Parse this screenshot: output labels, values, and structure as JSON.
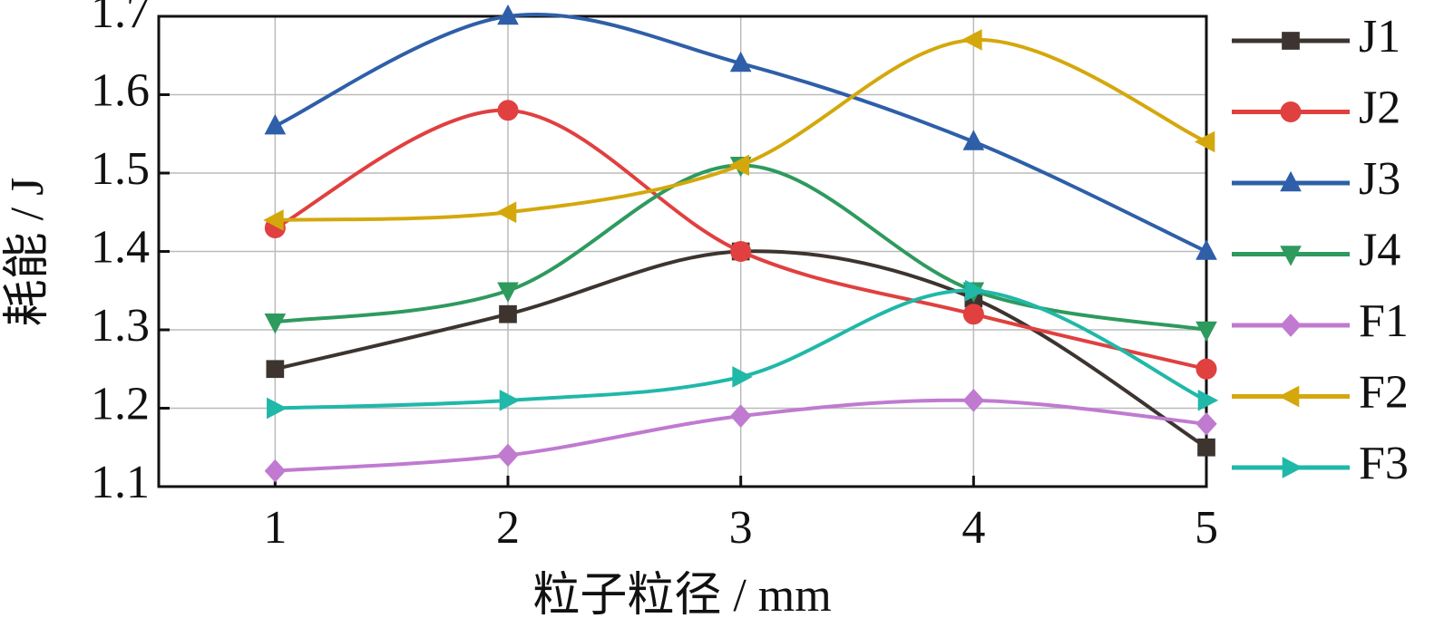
{
  "chart_data": {
    "type": "line",
    "x_label": "粒子粒径 / mm",
    "y_label": "耗能 / J",
    "x": [
      1,
      2,
      3,
      4,
      5
    ],
    "xlim": [
      0.5,
      5
    ],
    "xticks": [
      1,
      2,
      3,
      4,
      5
    ],
    "ylim": [
      1.1,
      1.7
    ],
    "yticks": [
      1.1,
      1.2,
      1.3,
      1.4,
      1.5,
      1.6,
      1.7
    ],
    "grid": true,
    "smooth": true,
    "legend": "right",
    "series": [
      {
        "name": "J1",
        "color": "#3d3430",
        "marker": "square",
        "values": [
          1.25,
          1.32,
          1.4,
          1.34,
          1.15
        ]
      },
      {
        "name": "J2",
        "color": "#e0403f",
        "marker": "circle",
        "values": [
          1.43,
          1.58,
          1.4,
          1.32,
          1.25
        ]
      },
      {
        "name": "J3",
        "color": "#2e5fa8",
        "marker": "triangle-up",
        "values": [
          1.56,
          1.7,
          1.64,
          1.54,
          1.4
        ]
      },
      {
        "name": "J4",
        "color": "#2e9a5e",
        "marker": "triangle-down",
        "values": [
          1.31,
          1.35,
          1.51,
          1.35,
          1.3
        ]
      },
      {
        "name": "F1",
        "color": "#c07ad0",
        "marker": "diamond",
        "values": [
          1.12,
          1.14,
          1.19,
          1.21,
          1.18
        ]
      },
      {
        "name": "F2",
        "color": "#d4a80c",
        "marker": "triangle-left",
        "values": [
          1.44,
          1.45,
          1.51,
          1.67,
          1.54
        ]
      },
      {
        "name": "F3",
        "color": "#20b8a8",
        "marker": "triangle-right",
        "values": [
          1.2,
          1.21,
          1.24,
          1.35,
          1.21
        ]
      }
    ]
  }
}
